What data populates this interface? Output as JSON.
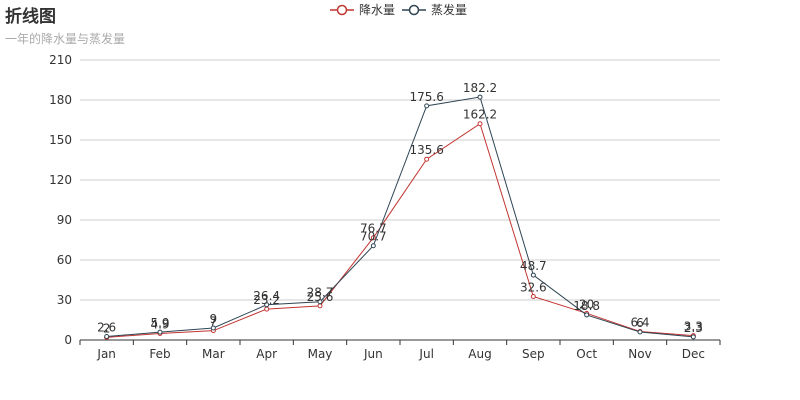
{
  "chart_data": {
    "type": "line",
    "title": "折线图",
    "subtitle": "一年的降水量与蒸发量",
    "categories": [
      "Jan",
      "Feb",
      "Mar",
      "Apr",
      "May",
      "Jun",
      "Jul",
      "Aug",
      "Sep",
      "Oct",
      "Nov",
      "Dec"
    ],
    "series": [
      {
        "name": "降水量",
        "color": "#c23531",
        "values": [
          2.0,
          4.9,
          7.0,
          23.2,
          25.6,
          76.7,
          135.6,
          162.2,
          32.6,
          20.0,
          6.4,
          3.3
        ]
      },
      {
        "name": "蒸发量",
        "color": "#2f4554",
        "values": [
          2.6,
          5.9,
          9.0,
          26.4,
          28.7,
          70.7,
          175.6,
          182.2,
          48.7,
          18.8,
          6.0,
          2.3
        ]
      }
    ],
    "ylim": [
      0,
      210
    ],
    "yticks": [
      0,
      30,
      60,
      90,
      120,
      150,
      180,
      210
    ],
    "grid": true,
    "legend": "top-center",
    "xlabel": "",
    "ylabel": ""
  }
}
